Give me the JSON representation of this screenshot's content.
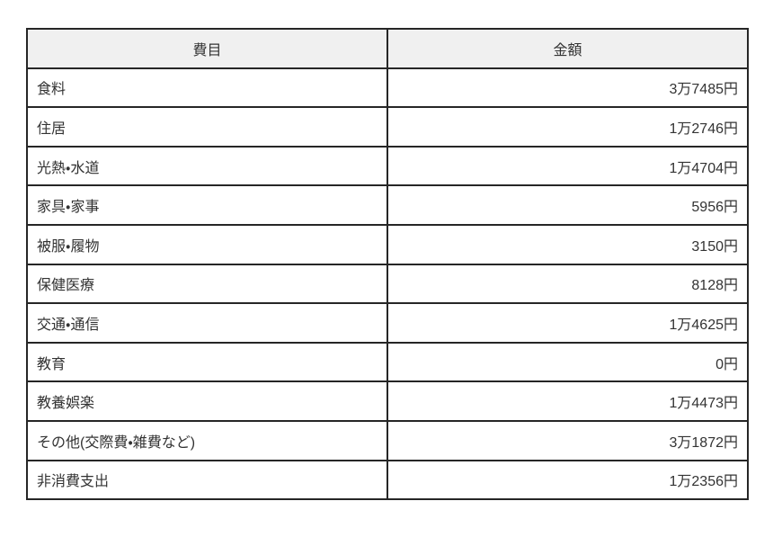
{
  "chart_data": {
    "type": "table",
    "title": "",
    "columns": [
      "費目",
      "金額"
    ],
    "rows": [
      [
        "食料",
        "3万7485円"
      ],
      [
        "住居",
        "1万2746円"
      ],
      [
        "光熱・水道",
        "1万4704円"
      ],
      [
        "家具・家事",
        "5956円"
      ],
      [
        "被服・履物",
        "3150円"
      ],
      [
        "保健医療",
        "8128円"
      ],
      [
        "交通・通信",
        "1万4625円"
      ],
      [
        "教育",
        "0円"
      ],
      [
        "教養娯楽",
        "1万4473円"
      ],
      [
        "その他(交際費・雑費など)",
        "3万1872円"
      ],
      [
        "非消費支出",
        "1万2356円"
      ]
    ],
    "values_yen": [
      37485,
      12746,
      14704,
      5956,
      3150,
      8128,
      14625,
      0,
      14473,
      31872,
      12356
    ],
    "layout": {
      "header_background": "#f0f0f0",
      "border_color": "#262626",
      "text_color": "#333333",
      "item_align": "left",
      "amount_align": "right"
    }
  }
}
